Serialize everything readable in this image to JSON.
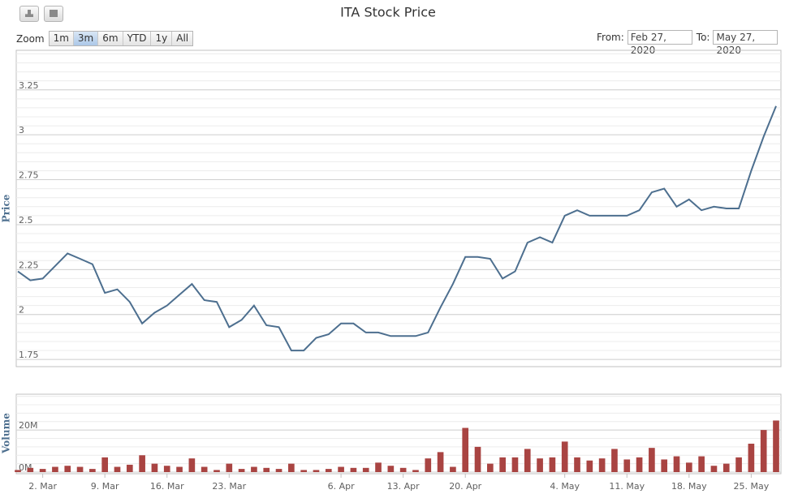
{
  "ui": {
    "zoom_label": "Zoom",
    "buttons": [
      "1m",
      "3m",
      "6m",
      "YTD",
      "1y",
      "All"
    ],
    "selected": 1,
    "from_label": "From:",
    "from_value": "Feb 27, 2020",
    "to_label": "To:",
    "to_value": "May 27, 2020"
  },
  "chart_data": [
    {
      "type": "line",
      "title": "ITA Stock Price",
      "ylabel": "Price",
      "color": "#4d6f8f",
      "values": [
        2.24,
        2.19,
        2.2,
        2.27,
        2.34,
        2.31,
        2.28,
        2.12,
        2.14,
        2.07,
        1.95,
        2.01,
        2.05,
        2.11,
        2.17,
        2.08,
        2.07,
        1.93,
        1.97,
        2.05,
        1.94,
        1.93,
        1.8,
        1.8,
        1.87,
        1.89,
        1.95,
        1.95,
        1.9,
        1.9,
        1.88,
        1.88,
        1.88,
        1.9,
        2.04,
        2.17,
        2.32,
        2.32,
        2.31,
        2.2,
        2.24,
        2.4,
        2.43,
        2.4,
        2.55,
        2.58,
        2.55,
        2.55,
        2.55,
        2.55,
        2.58,
        2.68,
        2.7,
        2.6,
        2.64,
        2.58,
        2.6,
        2.59,
        2.59,
        2.8,
        2.99,
        3.16
      ],
      "ylim": [
        1.71,
        3.47
      ],
      "yticks": [
        1.75,
        2,
        2.25,
        2.5,
        2.75,
        3,
        3.25
      ],
      "grid": true
    },
    {
      "type": "bar",
      "ylabel": "Volume",
      "color": "#a94442",
      "categories": [
        null,
        null,
        "2. Mar",
        null,
        null,
        null,
        null,
        "9. Mar",
        null,
        null,
        null,
        null,
        "16. Mar",
        null,
        null,
        null,
        null,
        "23. Mar",
        null,
        null,
        null,
        null,
        null,
        null,
        null,
        null,
        "6. Apr",
        null,
        null,
        null,
        null,
        "13. Apr",
        null,
        null,
        null,
        null,
        "20. Apr",
        null,
        null,
        null,
        null,
        null,
        null,
        null,
        "4. May",
        null,
        null,
        null,
        null,
        "11. May",
        null,
        null,
        null,
        null,
        "18. May",
        null,
        null,
        null,
        null,
        "25. May",
        null,
        null
      ],
      "values": [
        1,
        2,
        1.5,
        2.5,
        3,
        2.5,
        1.5,
        7,
        2.5,
        3.5,
        8,
        4,
        3,
        2.5,
        6.5,
        2.5,
        1,
        4,
        1.5,
        2.5,
        2,
        1.5,
        4,
        1,
        1,
        1.5,
        2.5,
        2,
        2,
        4.5,
        3,
        2,
        1,
        6.5,
        9.5,
        2.5,
        21,
        12,
        4,
        7,
        7,
        11,
        6.5,
        7,
        14.5,
        7,
        5.5,
        6.5,
        11,
        6,
        7,
        11.5,
        6,
        7.5,
        4.5,
        7.5,
        3,
        4,
        7,
        13.5,
        20,
        24.5
      ],
      "ylim": [
        0,
        37
      ],
      "yticks": [
        {
          "value": 0,
          "label": "0M"
        },
        {
          "value": 20,
          "label": "20M"
        }
      ],
      "grid": true
    }
  ]
}
